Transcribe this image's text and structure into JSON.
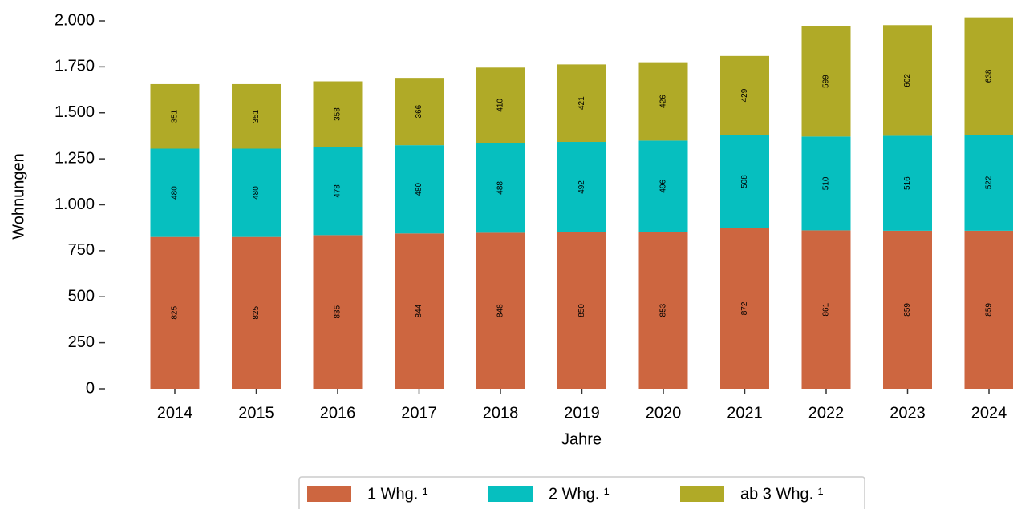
{
  "chart_data": {
    "type": "stacked_bar",
    "categories": [
      "2014",
      "2015",
      "2016",
      "2017",
      "2018",
      "2019",
      "2020",
      "2021",
      "2022",
      "2023",
      "2024"
    ],
    "series": [
      {
        "name": "1 Whg. ¹",
        "color": "#cd6640",
        "values": [
          825,
          825,
          835,
          844,
          848,
          850,
          853,
          872,
          861,
          859,
          859
        ]
      },
      {
        "name": "2 Whg. ¹",
        "color": "#06bfbf",
        "values": [
          480,
          480,
          478,
          480,
          488,
          492,
          496,
          508,
          510,
          516,
          522
        ]
      },
      {
        "name": "ab 3 Whg. ¹",
        "color": "#b0aa27",
        "values": [
          351,
          351,
          358,
          366,
          410,
          421,
          426,
          429,
          599,
          602,
          638
        ]
      }
    ],
    "ylabel": "Wohnungen",
    "xlabel": "Jahre",
    "ylim": [
      0,
      2000
    ],
    "yticks": [
      0,
      250,
      500,
      750,
      {
        "value": 1000,
        "label": "1.000"
      },
      {
        "value": 1250,
        "label": "1.250"
      },
      {
        "value": 1500,
        "label": "1.500"
      },
      {
        "value": 1750,
        "label": "1.750"
      },
      {
        "value": 2000,
        "label": "2.000"
      }
    ],
    "grid": false,
    "legend": "bottom"
  }
}
